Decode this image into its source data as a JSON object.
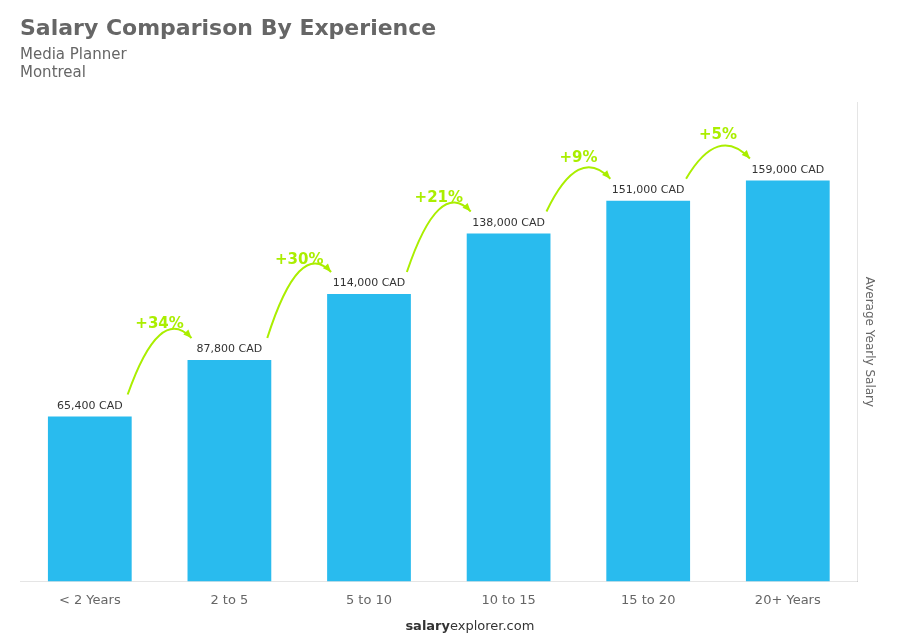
{
  "chart_data": {
    "type": "bar",
    "title": "Salary Comparison By Experience",
    "subtitle": [
      "Media Planner",
      "Montreal"
    ],
    "categories": [
      "< 2 Years",
      "2 to 5",
      "5 to 10",
      "10 to 15",
      "15 to 20",
      "20+ Years"
    ],
    "values": [
      65400,
      87800,
      114000,
      138000,
      151000,
      159000
    ],
    "value_labels": [
      "65,400 CAD",
      "87,800 CAD",
      "114,000 CAD",
      "138,000 CAD",
      "151,000 CAD",
      "159,000 CAD"
    ],
    "data_labels": true,
    "color": "#29bbee",
    "ylabel": "Average Yearly Salary",
    "ylim": [
      0,
      190000
    ],
    "tick_labels": "x",
    "grid": false,
    "annotations": [
      {
        "text": "+34%",
        "color": "#aaee00"
      },
      {
        "text": "+30%",
        "color": "#aaee00"
      },
      {
        "text": "+21%",
        "color": "#aaee00"
      },
      {
        "text": "+9%",
        "color": "#aaee00"
      },
      {
        "text": "+5%",
        "color": "#aaee00"
      }
    ],
    "footer": [
      "salary",
      "explorer.com"
    ]
  }
}
